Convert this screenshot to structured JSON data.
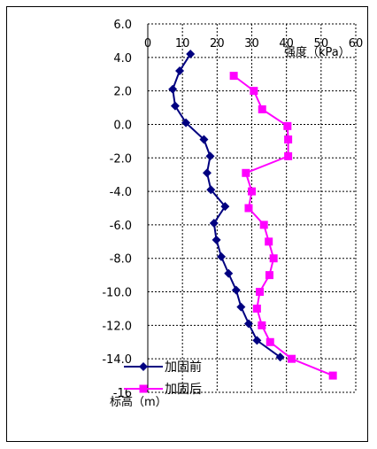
{
  "chart_data": {
    "type": "line",
    "xlabel": "强度（kPa）",
    "ylabel": "标高（m）",
    "xlim": [
      0,
      60
    ],
    "ylim": [
      -16,
      6
    ],
    "x_ticks": [
      "0",
      "10",
      "20",
      "30",
      "40",
      "50",
      "60"
    ],
    "y_ticks": [
      "6.0",
      "4.0",
      "2.0",
      "0.0",
      "-2.0",
      "-4.0",
      "-6.0",
      "-8.0",
      "-10.0",
      "-12.0",
      "-14.0",
      "-16"
    ],
    "grid": true,
    "legend_position": "bottom-left",
    "series": [
      {
        "name": "加固前",
        "color": "#000080",
        "marker": "diamond",
        "points": [
          [
            12.3,
            4.2
          ],
          [
            9.2,
            3.2
          ],
          [
            7.2,
            2.1
          ],
          [
            7.9,
            1.1
          ],
          [
            11.0,
            0.1
          ],
          [
            16.2,
            -0.9
          ],
          [
            18.0,
            -1.9
          ],
          [
            17.1,
            -2.9
          ],
          [
            18.2,
            -3.9
          ],
          [
            22.3,
            -4.9
          ],
          [
            19.1,
            -5.9
          ],
          [
            19.8,
            -6.9
          ],
          [
            21.2,
            -7.9
          ],
          [
            23.3,
            -8.9
          ],
          [
            25.5,
            -9.9
          ],
          [
            26.9,
            -10.9
          ],
          [
            29.1,
            -11.9
          ],
          [
            31.5,
            -12.9
          ],
          [
            38.2,
            -13.9
          ]
        ]
      },
      {
        "name": "加固后",
        "color": "#ff00ff",
        "marker": "square",
        "points": [
          [
            24.8,
            2.9
          ],
          [
            30.6,
            2.0
          ],
          [
            33.0,
            0.9
          ],
          [
            40.3,
            -0.1
          ],
          [
            40.5,
            -0.9
          ],
          [
            40.5,
            -1.9
          ],
          [
            28.3,
            -2.9
          ],
          [
            30.0,
            -4.0
          ],
          [
            29.1,
            -5.0
          ],
          [
            33.5,
            -6.0
          ],
          [
            34.9,
            -7.0
          ],
          [
            36.3,
            -8.0
          ],
          [
            35.1,
            -9.0
          ],
          [
            32.3,
            -10.0
          ],
          [
            31.5,
            -11.0
          ],
          [
            32.9,
            -12.0
          ],
          [
            35.3,
            -13.0
          ],
          [
            41.5,
            -14.0
          ],
          [
            53.4,
            -15.0
          ]
        ]
      }
    ]
  }
}
